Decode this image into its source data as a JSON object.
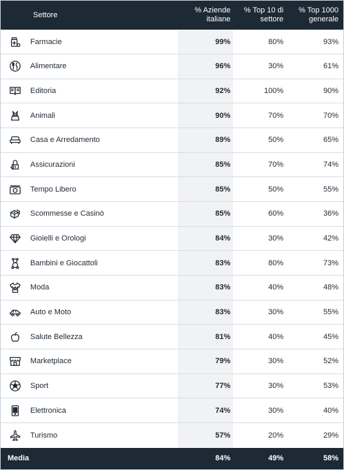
{
  "header": {
    "settore": "Settore",
    "col1": "% Aziende\nitaliane",
    "col2": "% Top 10 di\nsettore",
    "col3": "% Top 1000\ngenerale"
  },
  "rows": [
    {
      "icon": "pharmacy-icon",
      "label": "Farmacie",
      "v1": "99%",
      "v2": "80%",
      "v3": "93%"
    },
    {
      "icon": "food-icon",
      "label": "Alimentare",
      "v1": "96%",
      "v2": "30%",
      "v3": "61%"
    },
    {
      "icon": "book-icon",
      "label": "Editoria",
      "v1": "92%",
      "v2": "100%",
      "v3": "90%"
    },
    {
      "icon": "pet-icon",
      "label": "Animali",
      "v1": "90%",
      "v2": "70%",
      "v3": "70%"
    },
    {
      "icon": "sofa-icon",
      "label": "Casa e Arredamento",
      "v1": "89%",
      "v2": "50%",
      "v3": "65%"
    },
    {
      "icon": "insurance-icon",
      "label": "Assicurazioni",
      "v1": "85%",
      "v2": "70%",
      "v3": "74%"
    },
    {
      "icon": "camera-icon",
      "label": "Tempo Libero",
      "v1": "85%",
      "v2": "50%",
      "v3": "55%"
    },
    {
      "icon": "dice-icon",
      "label": "Scommesse e Casinò",
      "v1": "85%",
      "v2": "60%",
      "v3": "36%"
    },
    {
      "icon": "diamond-icon",
      "label": "Gioielli e Orologi",
      "v1": "84%",
      "v2": "30%",
      "v3": "42%"
    },
    {
      "icon": "teddy-bear-icon",
      "label": "Bambini e Giocattoli",
      "v1": "83%",
      "v2": "80%",
      "v3": "73%"
    },
    {
      "icon": "tshirt-icon",
      "label": "Moda",
      "v1": "83%",
      "v2": "40%",
      "v3": "48%"
    },
    {
      "icon": "car-icon",
      "label": "Auto e Moto",
      "v1": "83%",
      "v2": "30%",
      "v3": "55%"
    },
    {
      "icon": "apple-icon",
      "label": "Salute Bellezza",
      "v1": "81%",
      "v2": "40%",
      "v3": "45%"
    },
    {
      "icon": "store-icon",
      "label": "Marketplace",
      "v1": "79%",
      "v2": "30%",
      "v3": "52%"
    },
    {
      "icon": "soccer-ball-icon",
      "label": "Sport",
      "v1": "77%",
      "v2": "30%",
      "v3": "53%"
    },
    {
      "icon": "smartphone-icon",
      "label": "Elettronica",
      "v1": "74%",
      "v2": "30%",
      "v3": "40%"
    },
    {
      "icon": "airplane-icon",
      "label": "Turismo",
      "v1": "57%",
      "v2": "20%",
      "v3": "29%"
    }
  ],
  "footer": {
    "label": "Media",
    "v1": "84%",
    "v2": "49%",
    "v3": "58%"
  },
  "colors": {
    "header_bg": "#1d2935",
    "highlight_col": "#f1f2f4"
  }
}
